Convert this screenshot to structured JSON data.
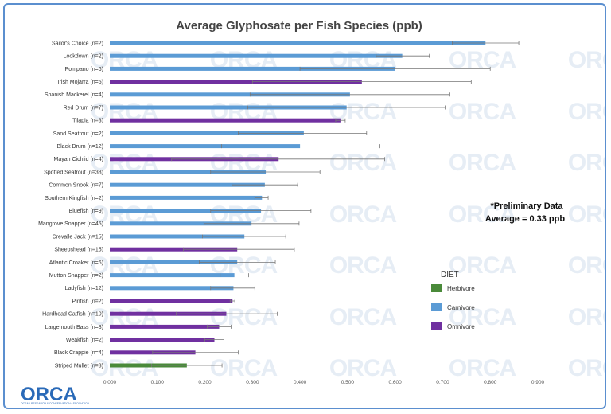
{
  "colors": {
    "Herbivore": "#4a8a3a",
    "Carnivore": "#5b9bd5",
    "Omnivore": "#7030a0",
    "error_bar": "#777777",
    "watermark": "#e6edf5",
    "logo": "#2a6ab8"
  },
  "chart_data": {
    "type": "bar",
    "orientation": "horizontal",
    "title": "Average Glyphosate per Fish Species (ppb)",
    "xlim": [
      0,
      0.9
    ],
    "xticks": [
      "0.000",
      "0.100",
      "0.200",
      "0.300",
      "0.400",
      "0.500",
      "0.600",
      "0.700",
      "0.800",
      "0.900"
    ],
    "grid": false,
    "legend": {
      "title": "DIET",
      "position": "right",
      "entries": [
        "Herbivore",
        "Carnivore",
        "Omnivore"
      ]
    },
    "annotation": [
      "*Preliminary Data",
      "Average = 0.33 ppb"
    ],
    "bars": [
      {
        "label": "Sailor's Choice (n=2)",
        "value": 0.79,
        "err_low": 0.72,
        "err_high": 0.86,
        "diet": "Carnivore"
      },
      {
        "label": "Lookdown (n=2)",
        "value": 0.615,
        "err_low": 0.56,
        "err_high": 0.672,
        "diet": "Carnivore"
      },
      {
        "label": "Pompano (n=6)",
        "value": 0.6,
        "err_low": 0.4,
        "err_high": 0.8,
        "diet": "Carnivore"
      },
      {
        "label": "Irish Mojarra (n=5)",
        "value": 0.53,
        "err_low": 0.3,
        "err_high": 0.76,
        "diet": "Omnivore"
      },
      {
        "label": "Spanish Mackerel (n=4)",
        "value": 0.505,
        "err_low": 0.295,
        "err_high": 0.715,
        "diet": "Carnivore"
      },
      {
        "label": "Red Drum (n=7)",
        "value": 0.498,
        "err_low": 0.29,
        "err_high": 0.705,
        "diet": "Carnivore"
      },
      {
        "label": "Tilapia (n=3)",
        "value": 0.485,
        "err_low": 0.475,
        "err_high": 0.495,
        "diet": "Omnivore"
      },
      {
        "label": "Sand Seatrout (n=2)",
        "value": 0.408,
        "err_low": 0.27,
        "err_high": 0.54,
        "diet": "Carnivore"
      },
      {
        "label": "Black Drum (n=12)",
        "value": 0.4,
        "err_low": 0.235,
        "err_high": 0.568,
        "diet": "Carnivore"
      },
      {
        "label": "Mayan Cichlid (n=4)",
        "value": 0.355,
        "err_low": 0.13,
        "err_high": 0.578,
        "diet": "Omnivore"
      },
      {
        "label": "Spotted Seatrout (n=38)",
        "value": 0.328,
        "err_low": 0.212,
        "err_high": 0.442,
        "diet": "Carnivore"
      },
      {
        "label": "Common Snook (n=7)",
        "value": 0.326,
        "err_low": 0.257,
        "err_high": 0.395,
        "diet": "Carnivore"
      },
      {
        "label": "Southern Kingfish (n=2)",
        "value": 0.32,
        "err_low": 0.305,
        "err_high": 0.333,
        "diet": "Carnivore"
      },
      {
        "label": "Bluefish (n=9)",
        "value": 0.318,
        "err_low": 0.212,
        "err_high": 0.423,
        "diet": "Carnivore"
      },
      {
        "label": "Mangrove Snapper (n=45)",
        "value": 0.298,
        "err_low": 0.198,
        "err_high": 0.398,
        "diet": "Carnivore"
      },
      {
        "label": "Crevalle Jack (n=15)",
        "value": 0.283,
        "err_low": 0.195,
        "err_high": 0.37,
        "diet": "Carnivore"
      },
      {
        "label": "Sheepshead (n=15)",
        "value": 0.268,
        "err_low": 0.155,
        "err_high": 0.388,
        "diet": "Omnivore"
      },
      {
        "label": "Atlantic Croaker (n=6)",
        "value": 0.268,
        "err_low": 0.188,
        "err_high": 0.348,
        "diet": "Carnivore"
      },
      {
        "label": "Mutton Snapper (n=2)",
        "value": 0.262,
        "err_low": 0.232,
        "err_high": 0.292,
        "diet": "Carnivore"
      },
      {
        "label": "Ladyfish (n=12)",
        "value": 0.26,
        "err_low": 0.212,
        "err_high": 0.305,
        "diet": "Carnivore"
      },
      {
        "label": "Pinfish (n=2)",
        "value": 0.258,
        "err_low": 0.253,
        "err_high": 0.263,
        "diet": "Omnivore"
      },
      {
        "label": "Hardhead Catfish (n=10)",
        "value": 0.245,
        "err_low": 0.14,
        "err_high": 0.352,
        "diet": "Omnivore"
      },
      {
        "label": "Largemouth Bass (n=3)",
        "value": 0.23,
        "err_low": 0.205,
        "err_high": 0.255,
        "diet": "Omnivore"
      },
      {
        "label": "Weakfish (n=2)",
        "value": 0.22,
        "err_low": 0.2,
        "err_high": 0.24,
        "diet": "Omnivore"
      },
      {
        "label": "Black Crappie (n=4)",
        "value": 0.18,
        "err_low": 0.09,
        "err_high": 0.27,
        "diet": "Omnivore"
      },
      {
        "label": "Striped Mullet (n=3)",
        "value": 0.162,
        "err_low": 0.088,
        "err_high": 0.236,
        "diet": "Herbivore"
      }
    ]
  },
  "watermark_text": "ORCA",
  "logo": {
    "text": "ORCA",
    "subtitle": "OCEAN RESEARCH & CONSERVATION ASSOCIATION"
  }
}
